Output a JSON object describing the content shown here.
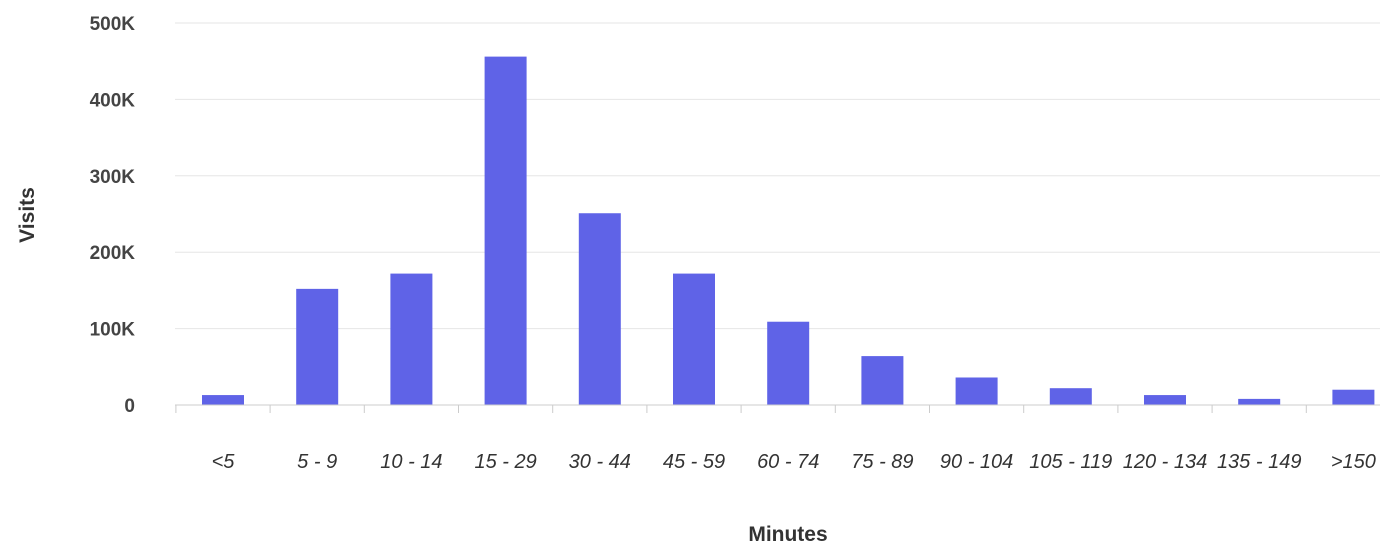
{
  "chart_data": {
    "type": "bar",
    "xlabel": "Minutes",
    "ylabel": "Visits",
    "categories": [
      "<5",
      "5 - 9",
      "10 - 14",
      "15 - 29",
      "30 - 44",
      "45 - 59",
      "60 - 74",
      "75 - 89",
      "90 - 104",
      "105 - 119",
      "120 - 134",
      "135 - 149",
      ">150"
    ],
    "values": [
      13000,
      152000,
      172000,
      456000,
      251000,
      172000,
      109000,
      64000,
      36000,
      22000,
      13000,
      8000,
      20000
    ],
    "ylim": [
      0,
      500000
    ],
    "y_ticks": [
      {
        "value": 0,
        "label": "0"
      },
      {
        "value": 100000,
        "label": "100K"
      },
      {
        "value": 200000,
        "label": "200K"
      },
      {
        "value": 300000,
        "label": "300K"
      },
      {
        "value": 400000,
        "label": "400K"
      },
      {
        "value": 500000,
        "label": "500K"
      }
    ],
    "grid": true,
    "legend": "none",
    "colors": {
      "bar": "#5f63e7",
      "grid": "#e6e6e6",
      "axis": "#cccccc"
    }
  }
}
